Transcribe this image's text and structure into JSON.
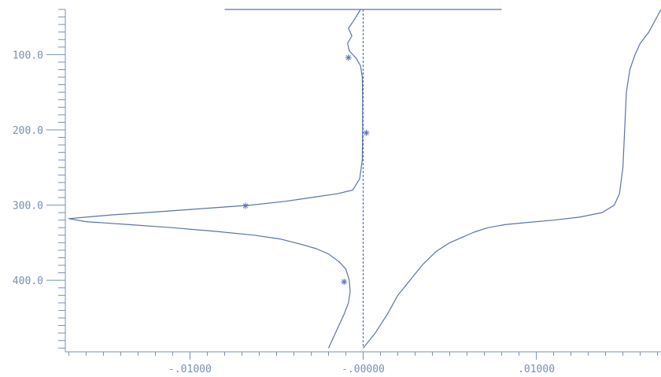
{
  "chart_data": {
    "type": "line",
    "title": "",
    "xlabel": "",
    "ylabel": "",
    "xlim": [
      -0.0172,
      0.0172
    ],
    "ylim": [
      40,
      495
    ],
    "y_inverted": true,
    "grid": false,
    "x_ticks": [
      {
        "value": -0.01,
        "label": "-.01000"
      },
      {
        "value": 0.0,
        "label": "-.00000"
      },
      {
        "value": 0.01,
        "label": ".01000"
      }
    ],
    "y_ticks": [
      {
        "value": 100,
        "label": "100.0"
      },
      {
        "value": 200,
        "label": "200.0"
      },
      {
        "value": 300,
        "label": "300.0"
      },
      {
        "value": 400,
        "label": "400.0"
      }
    ],
    "series": [
      {
        "style": "solid",
        "x": [
          -0.00015,
          -0.00055,
          -0.00085,
          -0.00065,
          -0.0009,
          -0.0008,
          -0.0004,
          -0.00015,
          -5e-05,
          -3e-05,
          -3e-05,
          -5e-05,
          -0.0002,
          -0.0006,
          -0.0015,
          -0.003,
          -0.0045,
          -0.0065,
          -0.0095,
          -0.0125,
          -0.0145,
          -0.016,
          -0.017,
          -0.016,
          -0.0135,
          -0.011,
          -0.0085,
          -0.0063,
          -0.0048,
          -0.0036,
          -0.0027,
          -0.002,
          -0.0014,
          -0.001,
          -0.0008,
          -0.00075,
          -0.00085,
          -0.0011,
          -0.0015,
          -0.002
        ],
        "y": [
          40,
          55,
          65,
          75,
          85,
          95,
          105,
          115,
          130,
          160,
          200,
          240,
          265,
          280,
          285,
          290,
          295,
          300,
          305,
          310,
          313,
          316,
          318,
          322,
          326,
          330,
          335,
          340,
          345,
          352,
          358,
          365,
          375,
          385,
          400,
          415,
          430,
          445,
          465,
          490
        ]
      },
      {
        "style": "solid",
        "x": [
          0.0172,
          0.0165,
          0.016,
          0.0157,
          0.0154,
          0.0152,
          0.0151,
          0.015,
          0.0148,
          0.0145,
          0.0138,
          0.0125,
          0.011,
          0.0095,
          0.0082,
          0.0072,
          0.0064,
          0.0057,
          0.005,
          0.0042,
          0.0034,
          0.0027,
          0.002,
          0.0014,
          0.0007,
          0.0
        ],
        "y": [
          40,
          70,
          85,
          100,
          120,
          150,
          200,
          250,
          285,
          300,
          310,
          316,
          320,
          323,
          326,
          330,
          336,
          343,
          350,
          362,
          380,
          400,
          420,
          445,
          470,
          490
        ]
      },
      {
        "style": "dashed",
        "x": [
          0.0,
          0.0
        ],
        "y": [
          40,
          490
        ]
      },
      {
        "style": "solid",
        "x": [
          -0.008,
          0.008
        ],
        "y": [
          40,
          40
        ]
      }
    ],
    "markers": [
      {
        "x": -0.00085,
        "y": 104
      },
      {
        "x": 0.00018,
        "y": 204
      },
      {
        "x": -0.0068,
        "y": 301
      },
      {
        "x": -0.0011,
        "y": 402
      }
    ],
    "colors": {
      "line": "#5a73ad",
      "axis": "#7a8fb4",
      "label": "#7a8fb4"
    }
  }
}
